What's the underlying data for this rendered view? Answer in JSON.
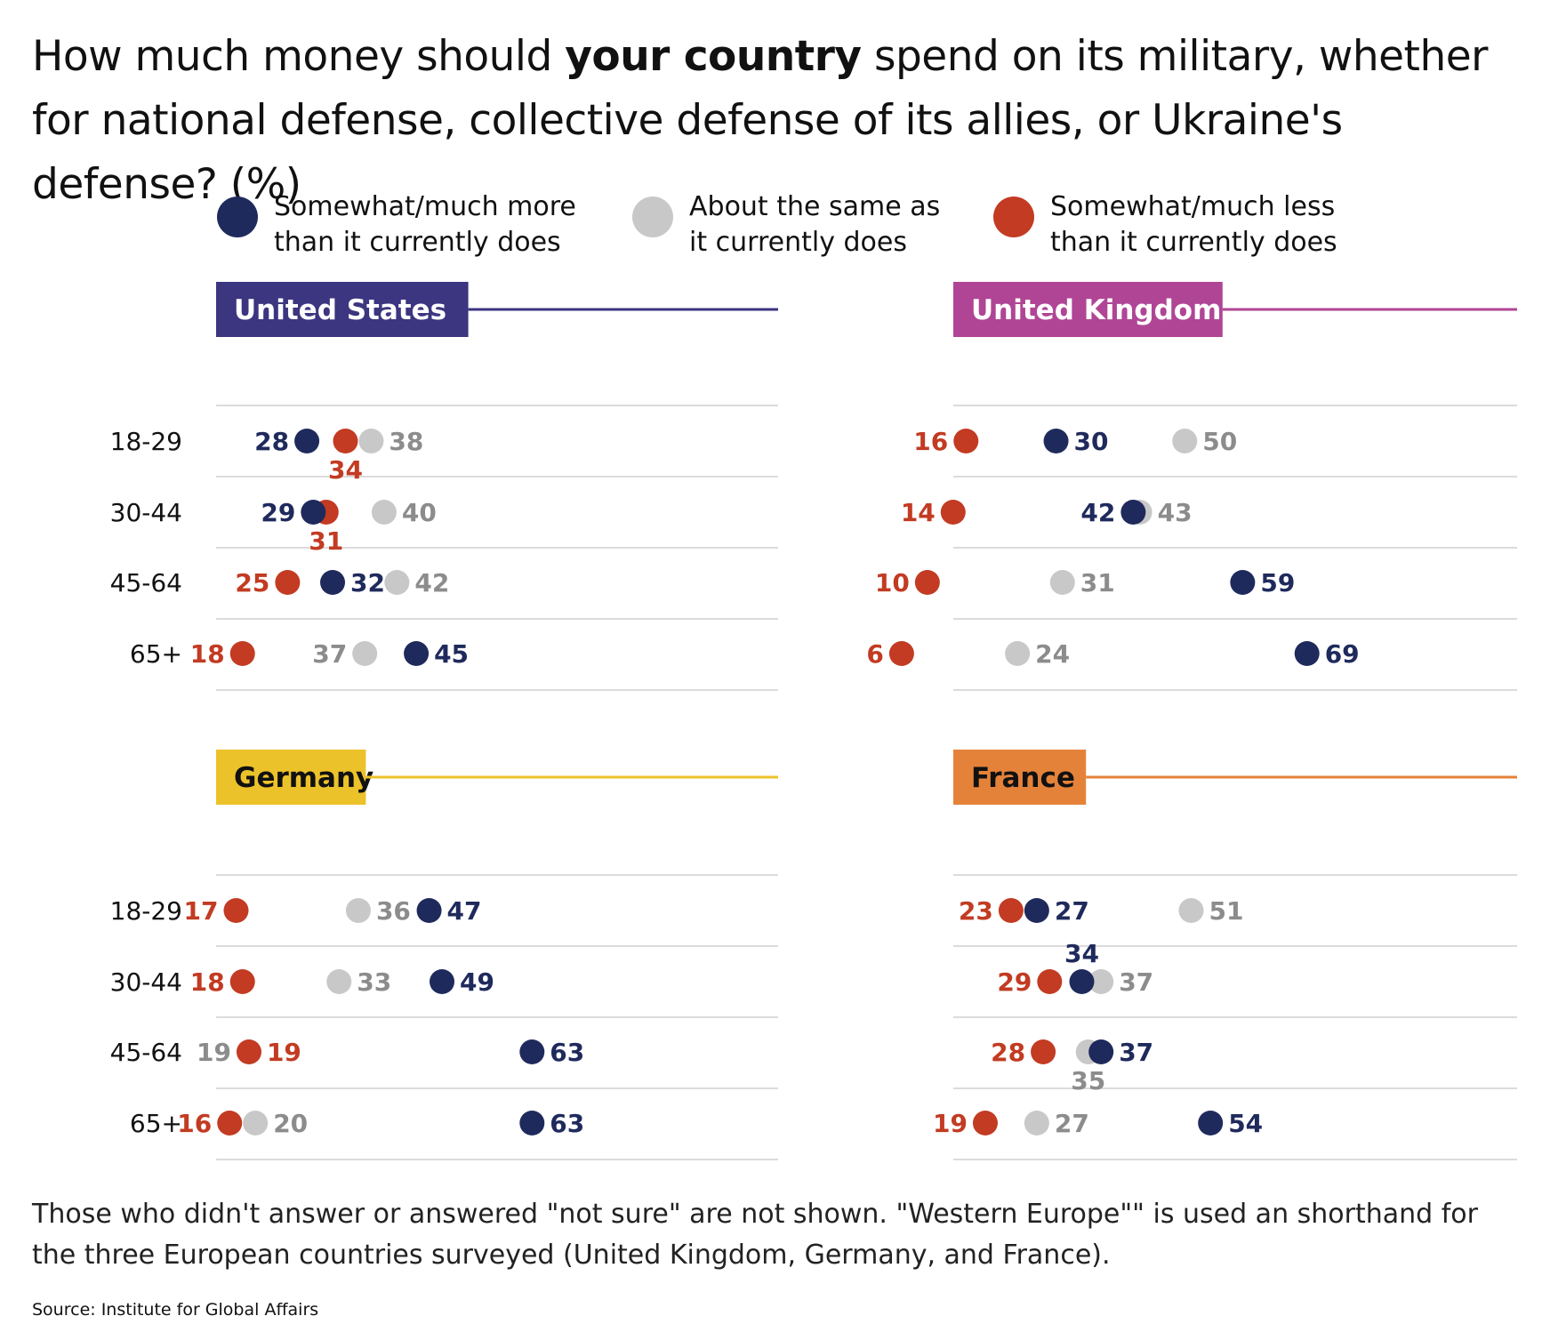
{
  "title": {
    "part1": "How much money should ",
    "bold": "your country",
    "part2": " spend on its military, whether for national defense, collective defense of its allies, or Ukraine's defense? (%)"
  },
  "legend": [
    {
      "key": "more",
      "label": "Somewhat/much more\nthan it currently does",
      "color": "#1f2a5c"
    },
    {
      "key": "same",
      "label": "About the same as\nit currently does",
      "color": "#c8c8c8"
    },
    {
      "key": "less",
      "label": "Somewhat/much less\nthan it currently does",
      "color": "#c23b22"
    }
  ],
  "colors": {
    "more": "#1f2a5c",
    "same": "#c8c8c8",
    "same_label": "#8c8c8c",
    "less": "#c23b22"
  },
  "chart_data": [
    {
      "type": "scatter",
      "title": "United States",
      "title_color": "#3c3580",
      "title_text_color": "#ffffff",
      "categories": [
        "18-29",
        "30-44",
        "45-64",
        "65+"
      ],
      "series": [
        {
          "key": "more",
          "values": [
            28,
            29,
            32,
            45
          ]
        },
        {
          "key": "same",
          "values": [
            38,
            40,
            42,
            37
          ]
        },
        {
          "key": "less",
          "values": [
            34,
            31,
            25,
            18
          ]
        }
      ]
    },
    {
      "type": "scatter",
      "title": "United Kingdom",
      "title_color": "#b04595",
      "title_text_color": "#ffffff",
      "categories": [
        "18-29",
        "30-44",
        "45-64",
        "65+"
      ],
      "series": [
        {
          "key": "more",
          "values": [
            30,
            42,
            59,
            69
          ]
        },
        {
          "key": "same",
          "values": [
            50,
            43,
            31,
            24
          ]
        },
        {
          "key": "less",
          "values": [
            16,
            14,
            10,
            6
          ]
        }
      ]
    },
    {
      "type": "scatter",
      "title": "Germany",
      "title_color": "#ecc22a",
      "title_text_color": "#111111",
      "categories": [
        "18-29",
        "30-44",
        "45-64",
        "65+"
      ],
      "series": [
        {
          "key": "more",
          "values": [
            47,
            49,
            63,
            63
          ]
        },
        {
          "key": "same",
          "values": [
            36,
            33,
            19,
            20
          ]
        },
        {
          "key": "less",
          "values": [
            17,
            18,
            19,
            16
          ]
        }
      ]
    },
    {
      "type": "scatter",
      "title": "France",
      "title_color": "#e5823a",
      "title_text_color": "#111111",
      "categories": [
        "18-29",
        "30-44",
        "45-64",
        "65+"
      ],
      "series": [
        {
          "key": "more",
          "values": [
            27,
            34,
            37,
            54
          ]
        },
        {
          "key": "same",
          "values": [
            51,
            37,
            35,
            27
          ]
        },
        {
          "key": "less",
          "values": [
            23,
            29,
            28,
            19
          ]
        }
      ]
    }
  ],
  "footnote": "Those who didn't answer or answered \"not sure\" are not shown. \"Western Europe\"\" is used an shorthand for the three European countries surveyed (United Kingdom, Germany, and France).",
  "source": "Source: Institute for Global Affairs"
}
